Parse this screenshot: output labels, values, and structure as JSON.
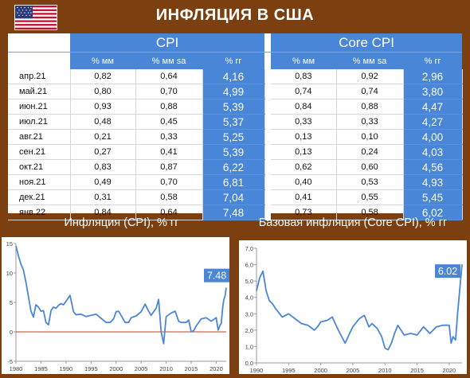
{
  "title": "ИНФЛЯЦИЯ В США",
  "table": {
    "groups": [
      "CPI",
      "Core CPI"
    ],
    "subheaders": [
      "% мм",
      "% мм sa",
      "% гг",
      "% мм",
      "% мм sa",
      "% гг"
    ],
    "rows": [
      {
        "month": "апр.21",
        "cpi": [
          "0,82",
          "0,64",
          "4,16"
        ],
        "core": [
          "0,83",
          "0,92",
          "2,96"
        ]
      },
      {
        "month": "май.21",
        "cpi": [
          "0,80",
          "0,70",
          "4,99"
        ],
        "core": [
          "0,74",
          "0,74",
          "3,80"
        ]
      },
      {
        "month": "июн.21",
        "cpi": [
          "0,93",
          "0,88",
          "5,39"
        ],
        "core": [
          "0,84",
          "0,88",
          "4,47"
        ]
      },
      {
        "month": "июл.21",
        "cpi": [
          "0,48",
          "0,45",
          "5,37"
        ],
        "core": [
          "0,33",
          "0,33",
          "4,27"
        ]
      },
      {
        "month": "авг.21",
        "cpi": [
          "0,21",
          "0,33",
          "5,25"
        ],
        "core": [
          "0,13",
          "0,10",
          "4,00"
        ]
      },
      {
        "month": "сен.21",
        "cpi": [
          "0,27",
          "0,41",
          "5,39"
        ],
        "core": [
          "0,13",
          "0,24",
          "4,03"
        ]
      },
      {
        "month": "окт.21",
        "cpi": [
          "0,83",
          "0,87",
          "6,22"
        ],
        "core": [
          "0,62",
          "0,60",
          "4,56"
        ]
      },
      {
        "month": "ноя.21",
        "cpi": [
          "0,49",
          "0,70",
          "6,81"
        ],
        "core": [
          "0,40",
          "0,53",
          "4,93"
        ]
      },
      {
        "month": "дек.21",
        "cpi": [
          "0,31",
          "0,58",
          "7,04"
        ],
        "core": [
          "0,41",
          "0,55",
          "5,45"
        ]
      },
      {
        "month": "янв.22",
        "cpi": [
          "0,84",
          "0,64",
          "7,48"
        ],
        "core": [
          "0,73",
          "0,58",
          "6,02"
        ]
      }
    ]
  },
  "colors": {
    "accent": "#4a86d8",
    "background": "#7b3f10",
    "line": "#4a86d8",
    "zero_line": "#d23a2a"
  },
  "chart_data": [
    {
      "type": "line",
      "title": "Инфляция (CPI), % гг",
      "xlim": [
        1980,
        2022
      ],
      "ylim": [
        -5,
        15
      ],
      "xticks": [
        1980,
        1985,
        1990,
        1995,
        2000,
        2005,
        2010,
        2015,
        2020
      ],
      "yticks": [
        -5,
        0,
        5,
        10,
        15
      ],
      "annotation": "7.48",
      "series": [
        {
          "x": [
            1980.0,
            1980.5,
            1981.0,
            1981.5,
            1982.0,
            1982.5,
            1983.0,
            1983.5,
            1984.0,
            1984.5,
            1985.0,
            1985.5,
            1986.0,
            1986.5,
            1987.0,
            1987.5,
            1988.0,
            1988.5,
            1989.0,
            1989.5,
            1990.0,
            1990.8,
            1991.5,
            1992.0,
            1993.0,
            1994.0,
            1995.0,
            1996.0,
            1997.0,
            1998.0,
            1998.8,
            1999.5,
            2000.0,
            2000.5,
            2001.0,
            2001.8,
            2002.5,
            2003.0,
            2004.0,
            2005.0,
            2005.8,
            2006.5,
            2007.0,
            2008.0,
            2008.5,
            2009.0,
            2009.5,
            2010.0,
            2011.0,
            2011.8,
            2012.5,
            2013.0,
            2014.0,
            2014.5,
            2015.0,
            2015.5,
            2016.0,
            2017.0,
            2018.0,
            2019.0,
            2020.0,
            2020.4,
            2020.8,
            2021.0,
            2021.3,
            2021.5,
            2021.8,
            2022.0
          ],
          "y": [
            14.6,
            12.9,
            11.5,
            10.5,
            8.4,
            6.0,
            3.5,
            2.5,
            4.6,
            4.2,
            3.5,
            3.6,
            1.6,
            1.2,
            3.6,
            4.2,
            4.0,
            4.5,
            4.8,
            4.6,
            5.2,
            6.2,
            3.4,
            2.9,
            3.0,
            2.6,
            2.8,
            3.0,
            2.3,
            1.6,
            1.6,
            2.2,
            3.4,
            3.5,
            2.8,
            1.6,
            1.6,
            2.4,
            2.7,
            3.4,
            4.7,
            3.5,
            2.8,
            4.0,
            5.5,
            0.0,
            -2.0,
            2.6,
            3.2,
            3.5,
            1.8,
            1.6,
            1.6,
            2.0,
            0.0,
            0.2,
            1.0,
            2.2,
            2.4,
            1.8,
            2.4,
            0.3,
            1.2,
            1.4,
            4.2,
            5.4,
            6.2,
            7.48
          ]
        }
      ]
    },
    {
      "type": "line",
      "title": "Базовая инфляция (Core CPI), % гг",
      "xlim": [
        1990,
        2022
      ],
      "ylim": [
        0,
        7
      ],
      "xticks": [
        1990,
        1995,
        2000,
        2005,
        2010,
        2015,
        2020
      ],
      "yticks": [
        "0,0",
        "1,0",
        "2,0",
        "3,0",
        "4,0",
        "5,0",
        "6,0",
        "7,0"
      ],
      "annotation": "6.02",
      "series": [
        {
          "x": [
            1990.0,
            1990.5,
            1991.0,
            1991.5,
            1992.0,
            1992.5,
            1993.0,
            1994.0,
            1995.0,
            1996.0,
            1997.0,
            1998.0,
            1999.0,
            1999.5,
            2000.0,
            2001.0,
            2001.8,
            2002.5,
            2003.0,
            2003.8,
            2004.5,
            2005.0,
            2006.0,
            2006.8,
            2007.5,
            2008.0,
            2008.8,
            2009.5,
            2010.0,
            2010.5,
            2011.0,
            2011.5,
            2012.0,
            2013.0,
            2014.0,
            2015.0,
            2016.0,
            2017.0,
            2018.0,
            2019.0,
            2020.0,
            2020.3,
            2020.6,
            2021.0,
            2021.3,
            2021.6,
            2022.0
          ],
          "y": [
            4.4,
            5.2,
            5.6,
            4.4,
            3.8,
            3.6,
            3.3,
            2.8,
            3.0,
            2.7,
            2.4,
            2.3,
            2.0,
            2.2,
            2.5,
            2.6,
            2.8,
            2.2,
            1.8,
            1.2,
            1.8,
            2.2,
            2.7,
            2.9,
            2.2,
            2.4,
            2.1,
            1.6,
            0.9,
            0.8,
            1.2,
            1.8,
            2.3,
            1.7,
            1.8,
            1.7,
            2.2,
            1.8,
            2.2,
            2.3,
            2.3,
            1.2,
            1.6,
            1.4,
            3.0,
            4.3,
            6.02
          ]
        }
      ]
    }
  ]
}
